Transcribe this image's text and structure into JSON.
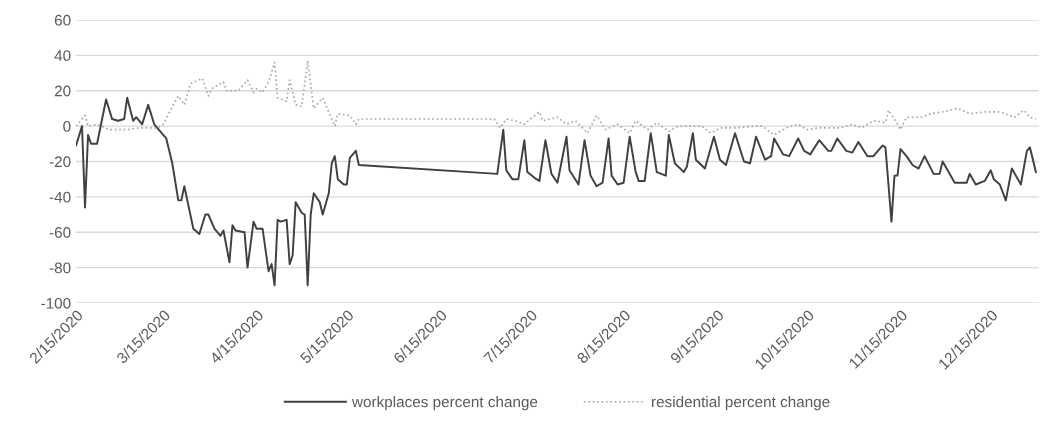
{
  "chart_data": {
    "type": "line",
    "xlim": [
      "2020-02-15",
      "2020-12-31"
    ],
    "xticks": [
      {
        "value": "2020-02-15",
        "label": "2/15/2020"
      },
      {
        "value": "2020-03-15",
        "label": "3/15/2020"
      },
      {
        "value": "2020-04-15",
        "label": "4/15/2020"
      },
      {
        "value": "2020-05-15",
        "label": "5/15/2020"
      },
      {
        "value": "2020-06-15",
        "label": "6/15/2020"
      },
      {
        "value": "2020-07-15",
        "label": "7/15/2020"
      },
      {
        "value": "2020-08-15",
        "label": "8/15/2020"
      },
      {
        "value": "2020-09-15",
        "label": "9/15/2020"
      },
      {
        "value": "2020-10-15",
        "label": "10/15/2020"
      },
      {
        "value": "2020-11-15",
        "label": "11/15/2020"
      },
      {
        "value": "2020-12-15",
        "label": "12/15/2020"
      }
    ],
    "ylim": [
      -100,
      60
    ],
    "yticks": [
      -100,
      -80,
      -60,
      -40,
      -20,
      0,
      20,
      40,
      60
    ],
    "grid": "y",
    "legend": "bottom",
    "marker": "none",
    "series": [
      {
        "name": "workplaces percent change",
        "color": "#404040",
        "line_style": "solid",
        "x": [
          "2020-02-15",
          "2020-02-17",
          "2020-02-18",
          "2020-02-19",
          "2020-02-20",
          "2020-02-22",
          "2020-02-25",
          "2020-02-27",
          "2020-02-29",
          "2020-03-02",
          "2020-03-03",
          "2020-03-05",
          "2020-03-06",
          "2020-03-08",
          "2020-03-10",
          "2020-03-12",
          "2020-03-16",
          "2020-03-18",
          "2020-03-20",
          "2020-03-21",
          "2020-03-22",
          "2020-03-25",
          "2020-03-27",
          "2020-03-29",
          "2020-03-30",
          "2020-04-01",
          "2020-04-03",
          "2020-04-04",
          "2020-04-06",
          "2020-04-07",
          "2020-04-08",
          "2020-04-11",
          "2020-04-12",
          "2020-04-14",
          "2020-04-15",
          "2020-04-17",
          "2020-04-19",
          "2020-04-20",
          "2020-04-21",
          "2020-04-22",
          "2020-04-23",
          "2020-04-25",
          "2020-04-26",
          "2020-04-27",
          "2020-04-28",
          "2020-04-30",
          "2020-05-01",
          "2020-05-02",
          "2020-05-03",
          "2020-05-04",
          "2020-05-06",
          "2020-05-07",
          "2020-05-09",
          "2020-05-10",
          "2020-05-11",
          "2020-05-12",
          "2020-05-14",
          "2020-05-15",
          "2020-05-16",
          "2020-05-18",
          "2020-05-19",
          "2020-07-04",
          "2020-07-06",
          "2020-07-07",
          "2020-07-09",
          "2020-07-11",
          "2020-07-13",
          "2020-07-14",
          "2020-07-17",
          "2020-07-18",
          "2020-07-20",
          "2020-07-22",
          "2020-07-24",
          "2020-07-27",
          "2020-07-28",
          "2020-07-31",
          "2020-08-02",
          "2020-08-04",
          "2020-08-06",
          "2020-08-08",
          "2020-08-10",
          "2020-08-11",
          "2020-08-13",
          "2020-08-15",
          "2020-08-17",
          "2020-08-19",
          "2020-08-20",
          "2020-08-22",
          "2020-08-24",
          "2020-08-26",
          "2020-08-29",
          "2020-08-30",
          "2020-09-01",
          "2020-09-04",
          "2020-09-05",
          "2020-09-07",
          "2020-09-08",
          "2020-09-11",
          "2020-09-14",
          "2020-09-16",
          "2020-09-18",
          "2020-09-21",
          "2020-09-24",
          "2020-09-26",
          "2020-09-28",
          "2020-10-01",
          "2020-10-03",
          "2020-10-04",
          "2020-10-07",
          "2020-10-09",
          "2020-10-12",
          "2020-10-14",
          "2020-10-16",
          "2020-10-19",
          "2020-10-22",
          "2020-10-23",
          "2020-10-25",
          "2020-10-28",
          "2020-10-30",
          "2020-11-01",
          "2020-11-04",
          "2020-11-06",
          "2020-11-09",
          "2020-11-10",
          "2020-11-12",
          "2020-11-13",
          "2020-11-14",
          "2020-11-15",
          "2020-11-17",
          "2020-11-19",
          "2020-11-21",
          "2020-11-23",
          "2020-11-26",
          "2020-11-28",
          "2020-11-29",
          "2020-12-01",
          "2020-12-03",
          "2020-12-07",
          "2020-12-08",
          "2020-12-10",
          "2020-12-13",
          "2020-12-15",
          "2020-12-16",
          "2020-12-18",
          "2020-12-20",
          "2020-12-22",
          "2020-12-25",
          "2020-12-27",
          "2020-12-28",
          "2020-12-30"
        ],
        "values": [
          -11,
          0,
          -46,
          -5,
          -10,
          -10,
          15,
          4,
          3,
          4,
          16,
          3,
          5,
          1,
          12,
          1,
          -7,
          -21,
          -42,
          -42,
          -34,
          -58,
          -61,
          -50,
          -50,
          -58,
          -62,
          -59,
          -77,
          -56,
          -59,
          -60,
          -80,
          -54,
          -58,
          -58,
          -82,
          -78,
          -90,
          -53,
          -54,
          -53,
          -78,
          -73,
          -43,
          -49,
          -50,
          -90,
          -50,
          -38,
          -43,
          -50,
          -38,
          -21,
          -17,
          -30,
          -33,
          -33,
          -18,
          -14,
          -22,
          -27,
          -2,
          -25,
          -30,
          -30,
          -8,
          -26,
          -30,
          -31,
          -8,
          -27,
          -32,
          -6,
          -25,
          -33,
          -8,
          -28,
          -34,
          -32,
          -7,
          -28,
          -33,
          -32,
          -6,
          -26,
          -31,
          -31,
          -4,
          -26,
          -28,
          -5,
          -21,
          -26,
          -23,
          -4,
          -19,
          -24,
          -6,
          -19,
          -22,
          -4,
          -20,
          -21,
          -6,
          -19,
          -17,
          -7,
          -16,
          -17,
          -7,
          -14,
          -16,
          -8,
          -14,
          -14,
          -7,
          -14,
          -15,
          -9,
          -17,
          -17,
          -11,
          -12,
          -54,
          -28,
          -28,
          -13,
          -17,
          -22,
          -24,
          -17,
          -27,
          -27,
          -20,
          -26,
          -32,
          -32,
          -27,
          -33,
          -31,
          -25,
          -30,
          -33,
          -42,
          -24,
          -33,
          -14,
          -12,
          -26
        ]
      },
      {
        "name": "residential percent change",
        "color": "#a6a6a6",
        "line_style": "dotted",
        "x": [
          "2020-02-15",
          "2020-02-18",
          "2020-02-19",
          "2020-02-22",
          "2020-02-26",
          "2020-03-03",
          "2020-03-07",
          "2020-03-13",
          "2020-03-15",
          "2020-03-18",
          "2020-03-20",
          "2020-03-22",
          "2020-03-24",
          "2020-03-28",
          "2020-03-30",
          "2020-03-31",
          "2020-04-04",
          "2020-04-05",
          "2020-04-09",
          "2020-04-12",
          "2020-04-14",
          "2020-04-15",
          "2020-04-17",
          "2020-04-19",
          "2020-04-21",
          "2020-04-22",
          "2020-04-25",
          "2020-04-26",
          "2020-04-28",
          "2020-04-30",
          "2020-05-02",
          "2020-05-04",
          "2020-05-07",
          "2020-05-11",
          "2020-05-12",
          "2020-05-16",
          "2020-05-18",
          "2020-05-19",
          "2020-07-03",
          "2020-07-05",
          "2020-07-07",
          "2020-07-10",
          "2020-07-13",
          "2020-07-15",
          "2020-07-18",
          "2020-07-19",
          "2020-07-24",
          "2020-07-27",
          "2020-07-30",
          "2020-08-03",
          "2020-08-06",
          "2020-08-09",
          "2020-08-13",
          "2020-08-17",
          "2020-08-19",
          "2020-08-23",
          "2020-08-26",
          "2020-08-30",
          "2020-09-02",
          "2020-09-06",
          "2020-09-10",
          "2020-09-13",
          "2020-09-16",
          "2020-09-21",
          "2020-09-28",
          "2020-09-30",
          "2020-10-04",
          "2020-10-08",
          "2020-10-12",
          "2020-10-15",
          "2020-10-19",
          "2020-10-26",
          "2020-10-30",
          "2020-11-02",
          "2020-11-06",
          "2020-11-10",
          "2020-11-11",
          "2020-11-13",
          "2020-11-15",
          "2020-11-17",
          "2020-11-22",
          "2020-11-25",
          "2020-11-29",
          "2020-12-04",
          "2020-12-08",
          "2020-12-13",
          "2020-12-18",
          "2020-12-23",
          "2020-12-26",
          "2020-12-28",
          "2020-12-30"
        ],
        "values": [
          0,
          6,
          0,
          1,
          -2,
          -2,
          -1,
          -1,
          1,
          11,
          17,
          12,
          24,
          27,
          17,
          21,
          25,
          20,
          20,
          26,
          19,
          21,
          19,
          25,
          36,
          16,
          14,
          26,
          12,
          11,
          37,
          10,
          16,
          0,
          7,
          6,
          1,
          4,
          4,
          -1,
          4,
          3,
          1,
          4,
          8,
          3,
          5,
          1,
          3,
          -4,
          6,
          -2,
          1,
          -4,
          3,
          -2,
          2,
          -3,
          0,
          0,
          0,
          -4,
          -1,
          -1,
          0,
          0,
          -5,
          -1,
          1,
          -2,
          -1,
          -1,
          1,
          -1,
          3,
          2,
          9,
          4,
          -2,
          5,
          5,
          7,
          8,
          10,
          7,
          8,
          8,
          5,
          9,
          5,
          4
        ]
      }
    ]
  }
}
